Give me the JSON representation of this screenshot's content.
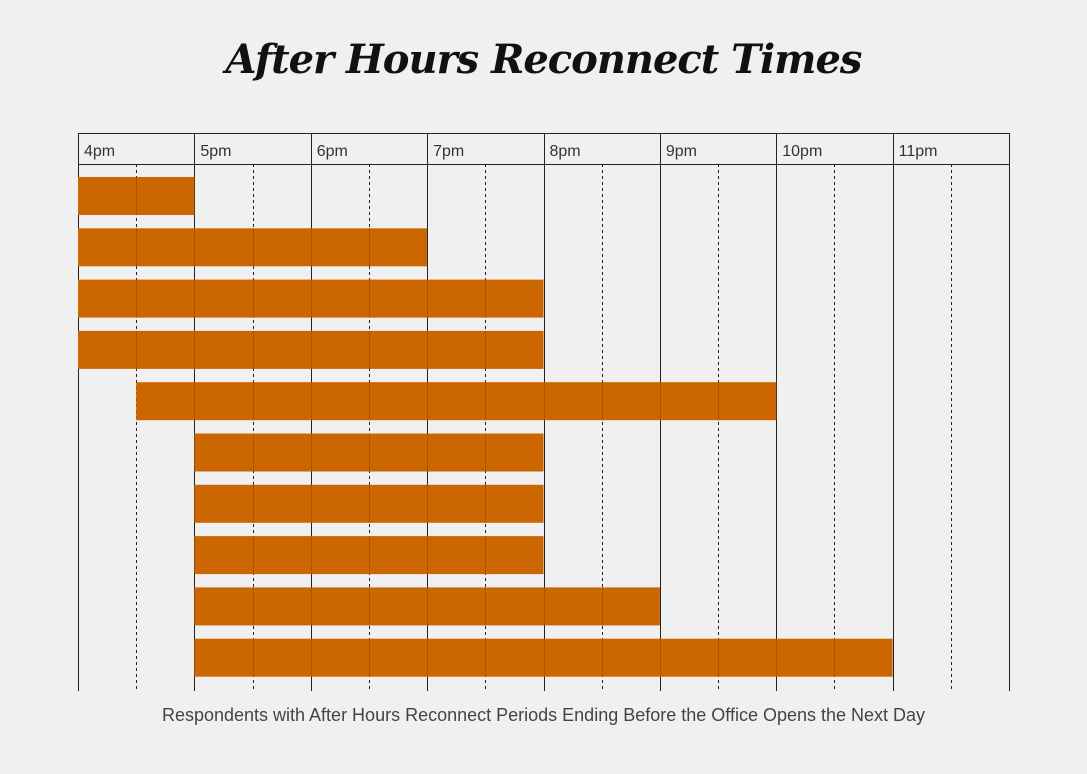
{
  "chart_data": {
    "type": "bar",
    "orientation": "horizontal-range",
    "title": "After Hours Reconnect Times",
    "xlabel": "Respondents with After Hours Reconnect Periods Ending Before the Office Opens the Next Day",
    "ylabel": "",
    "x_ticks": [
      "4pm",
      "5pm",
      "6pm",
      "7pm",
      "8pm",
      "9pm",
      "10pm",
      "11pm"
    ],
    "x_unit": "hour of day (24h)",
    "xlim": [
      16,
      24
    ],
    "grid": {
      "hour_lines": "solid",
      "half_hour_lines": "dashed"
    },
    "bar_color": "#cc6600",
    "bars": [
      {
        "start": 16.0,
        "end": 17.0
      },
      {
        "start": 16.0,
        "end": 19.0
      },
      {
        "start": 16.0,
        "end": 20.0
      },
      {
        "start": 16.0,
        "end": 20.0
      },
      {
        "start": 16.5,
        "end": 22.0
      },
      {
        "start": 17.0,
        "end": 20.0
      },
      {
        "start": 17.0,
        "end": 20.0
      },
      {
        "start": 17.0,
        "end": 20.0
      },
      {
        "start": 17.0,
        "end": 21.0
      },
      {
        "start": 17.0,
        "end": 23.0
      }
    ]
  }
}
